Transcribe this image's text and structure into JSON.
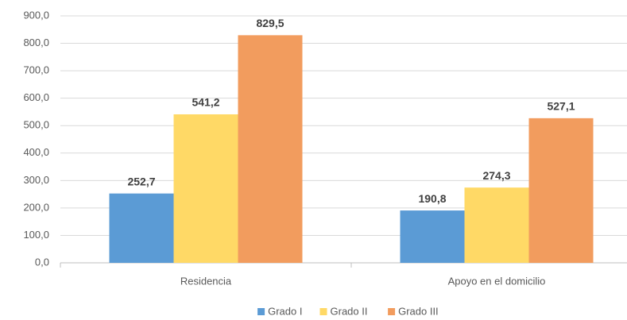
{
  "chart_data": {
    "type": "bar",
    "categories": [
      "Residencia",
      "Apoyo en el domicilio"
    ],
    "series": [
      {
        "name": "Grado I",
        "color": "#5b9bd5",
        "values": [
          252.7,
          190.8
        ],
        "value_labels": [
          "252,7",
          "190,8"
        ]
      },
      {
        "name": "Grado II",
        "color": "#ffd966",
        "values": [
          541.2,
          274.3
        ],
        "value_labels": [
          "541,2",
          "274,3"
        ]
      },
      {
        "name": "Grado III",
        "color": "#f29c5e",
        "values": [
          829.5,
          527.1
        ],
        "value_labels": [
          "829,5",
          "527,1"
        ]
      }
    ],
    "ylim": [
      0,
      900
    ],
    "yticks": [
      {
        "value": 0,
        "label": "0,0"
      },
      {
        "value": 100,
        "label": "100,0"
      },
      {
        "value": 200,
        "label": "200,0"
      },
      {
        "value": 300,
        "label": "300,0"
      },
      {
        "value": 400,
        "label": "400,0"
      },
      {
        "value": 500,
        "label": "500,0"
      },
      {
        "value": 600,
        "label": "600,0"
      },
      {
        "value": 700,
        "label": "700,0"
      },
      {
        "value": 800,
        "label": "800,0"
      },
      {
        "value": 900,
        "label": "900,0"
      }
    ],
    "grid": true,
    "legend": "bottom"
  }
}
